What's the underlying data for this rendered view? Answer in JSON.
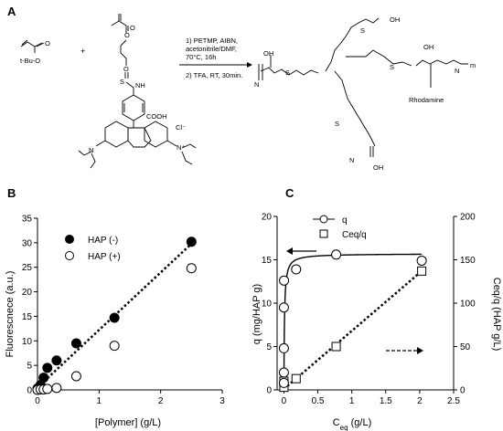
{
  "panel_a": {
    "letter": "A",
    "reactant_1": "t-Bu-O",
    "plus": "+",
    "step_1": "1) PETMP, AIBN,",
    "step_1b": "acetonitrile/DMF,",
    "step_1c": "70°C, 16h",
    "step_2": "2) TFA, RT, 30min.",
    "nh": "NH",
    "s": "S",
    "cooh": "COOH",
    "cl": "Cl⁻",
    "n_plus": "N⁺",
    "n": "N",
    "oh": "OH",
    "m": "m",
    "rhodamine": "Rhodamine"
  },
  "chart_data": [
    {
      "panel": "B",
      "type": "scatter",
      "xlabel": "[Polymer] (g/L)",
      "ylabel": "Fluorescnece (a.u.)",
      "xlim": [
        0,
        3
      ],
      "ylim": [
        0,
        35
      ],
      "xticks": [
        "0",
        "1",
        "2",
        "3"
      ],
      "yticks": [
        "0",
        "5",
        "10",
        "15",
        "20",
        "25",
        "30",
        "35"
      ],
      "legend_position": "top-left",
      "series": [
        {
          "name": "HAP (-)",
          "marker": "filled-circle",
          "x": [
            0.0,
            0.05,
            0.1,
            0.16,
            0.31,
            0.63,
            1.25,
            2.5
          ],
          "y": [
            0.3,
            1.0,
            2.5,
            4.5,
            6.0,
            9.5,
            14.7,
            30.2
          ]
        },
        {
          "name": "HAP (+)",
          "marker": "open-circle",
          "x": [
            0.0,
            0.05,
            0.1,
            0.16,
            0.31,
            0.63,
            1.25,
            2.5
          ],
          "y": [
            0.0,
            0.1,
            0.1,
            0.2,
            0.4,
            2.8,
            9.0,
            24.8
          ]
        }
      ],
      "trendline": {
        "style": "dotted",
        "x": [
          0,
          2.5
        ],
        "y": [
          0.5,
          29.8
        ]
      }
    },
    {
      "panel": "C",
      "type": "scatter",
      "xlabel": "C",
      "xlabel_sub": "eq",
      "xlabel_unit": " (g/L)",
      "ylabel_left": "q (mg/HAP g)",
      "ylabel_right": "Ceq/q (HAP g/L)",
      "xlim": [
        -0.1,
        2.5
      ],
      "ylim_left": [
        0,
        20
      ],
      "ylim_right": [
        0,
        200
      ],
      "xticks": [
        "0",
        "0.5",
        "1",
        "1.5",
        "2",
        "2.5"
      ],
      "yticks_left": [
        "0",
        "5",
        "10",
        "15",
        "20"
      ],
      "yticks_right": [
        "0",
        "50",
        "100",
        "150",
        "200"
      ],
      "legend_position": "top-right",
      "series": [
        {
          "name": "q",
          "axis": "left",
          "marker": "open-circle-line",
          "x": [
            0.0,
            0.0,
            0.0,
            0.0,
            0.002,
            0.18,
            0.77,
            2.03
          ],
          "y": [
            0.8,
            2.0,
            4.8,
            9.5,
            12.6,
            13.9,
            15.6,
            14.9
          ]
        },
        {
          "name": "Ceq/q",
          "axis": "right",
          "marker": "open-square",
          "x": [
            0.0,
            0.0,
            0.18,
            0.77,
            2.03
          ],
          "y": [
            3,
            10,
            13,
            50,
            137
          ]
        }
      ],
      "fit_q": {
        "style": "solid",
        "qmax": 15.7,
        "k": 120
      },
      "fit_ratio": {
        "style": "dotted",
        "x": [
          0,
          2.03
        ],
        "y": [
          1,
          137
        ]
      }
    }
  ]
}
